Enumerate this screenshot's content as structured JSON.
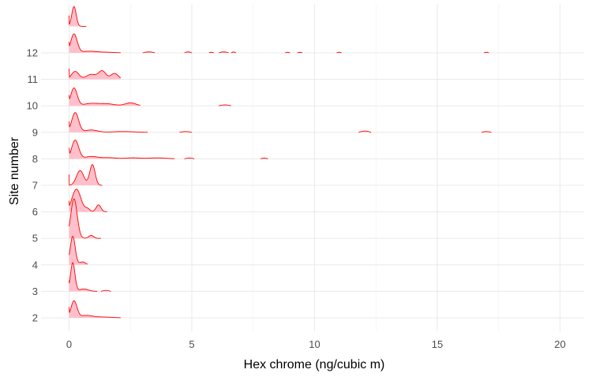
{
  "chart_data": {
    "type": "ridgeline",
    "xlabel": "Hex chrome (ng/cubic m)",
    "ylabel": "Site number",
    "xlim": [
      -1.3,
      20.9
    ],
    "x_ticks": [
      0,
      5,
      10,
      15,
      20
    ],
    "x_tick_labels": [
      "0",
      "5",
      "10",
      "15",
      "20"
    ],
    "categories": [
      "2",
      "3",
      "4",
      "5",
      "6",
      "7",
      "8",
      "9",
      "10",
      "11",
      "12"
    ],
    "grid": true,
    "fill_color": "#ffc0cb",
    "line_color": "#ff0000",
    "series": [
      {
        "name": "2",
        "peaks": [
          {
            "center": 0.2,
            "width": 0.12,
            "height": 0.85
          },
          {
            "center": 0.7,
            "width": 0.25,
            "height": 0.12
          },
          {
            "center": 1.4,
            "width": 0.35,
            "height": 0.04
          }
        ],
        "max_x": 2.1
      },
      {
        "name": "3",
        "peaks": [
          {
            "center": 0.15,
            "width": 0.09,
            "height": 1.45
          },
          {
            "center": 0.6,
            "width": 0.18,
            "height": 0.12
          }
        ],
        "max_x": 1.15,
        "extra_segments": [
          {
            "x0": 1.3,
            "x1": 1.7,
            "height": 0.05
          }
        ]
      },
      {
        "name": "4",
        "peaks": [
          {
            "center": 0.15,
            "width": 0.1,
            "height": 1.45
          },
          {
            "center": 0.55,
            "width": 0.12,
            "height": 0.15
          }
        ],
        "max_x": 0.75
      },
      {
        "name": "5",
        "peaks": [
          {
            "center": 0.2,
            "width": 0.13,
            "height": 2.0
          },
          {
            "center": 0.9,
            "width": 0.1,
            "height": 0.15
          }
        ],
        "max_x": 1.3
      },
      {
        "name": "6",
        "peaks": [
          {
            "center": 0.3,
            "width": 0.18,
            "height": 1.15
          },
          {
            "center": 0.75,
            "width": 0.1,
            "height": 0.15
          },
          {
            "center": 1.2,
            "width": 0.1,
            "height": 0.35
          }
        ],
        "max_x": 1.55
      },
      {
        "name": "7",
        "peaks": [
          {
            "center": 0.45,
            "width": 0.15,
            "height": 0.75
          },
          {
            "center": 0.95,
            "width": 0.11,
            "height": 1.05
          }
        ],
        "max_x": 1.35
      },
      {
        "name": "8",
        "peaks": [
          {
            "center": 0.25,
            "width": 0.14,
            "height": 0.95
          },
          {
            "center": 0.9,
            "width": 0.25,
            "height": 0.12
          },
          {
            "center": 1.6,
            "width": 0.3,
            "height": 0.06
          },
          {
            "center": 2.6,
            "width": 0.3,
            "height": 0.05
          },
          {
            "center": 3.6,
            "width": 0.35,
            "height": 0.05
          }
        ],
        "max_x": 4.3,
        "extra_segments": [
          {
            "x0": 4.7,
            "x1": 5.1,
            "height": 0.05
          },
          {
            "x0": 7.8,
            "x1": 8.1,
            "height": 0.04
          }
        ]
      },
      {
        "name": "9",
        "peaks": [
          {
            "center": 0.25,
            "width": 0.14,
            "height": 1.0
          },
          {
            "center": 0.9,
            "width": 0.25,
            "height": 0.12
          },
          {
            "center": 2.2,
            "width": 0.45,
            "height": 0.04
          }
        ],
        "max_x": 3.2,
        "extra_segments": [
          {
            "x0": 4.5,
            "x1": 5.0,
            "height": 0.04
          },
          {
            "x0": 11.8,
            "x1": 12.3,
            "height": 0.07
          },
          {
            "x0": 16.8,
            "x1": 17.2,
            "height": 0.04
          }
        ]
      },
      {
        "name": "10",
        "peaks": [
          {
            "center": 0.2,
            "width": 0.13,
            "height": 0.9
          },
          {
            "center": 0.9,
            "width": 0.3,
            "height": 0.12
          },
          {
            "center": 1.55,
            "width": 0.3,
            "height": 0.1
          },
          {
            "center": 2.5,
            "width": 0.22,
            "height": 0.15
          }
        ],
        "max_x": 2.9,
        "extra_segments": [
          {
            "x0": 6.1,
            "x1": 6.6,
            "height": 0.05
          }
        ]
      },
      {
        "name": "11",
        "peaks": [
          {
            "center": 0.25,
            "width": 0.15,
            "height": 0.4
          },
          {
            "center": 0.9,
            "width": 0.2,
            "height": 0.25
          },
          {
            "center": 1.35,
            "width": 0.15,
            "height": 0.42
          },
          {
            "center": 1.85,
            "width": 0.15,
            "height": 0.3
          }
        ],
        "max_x": 2.1
      },
      {
        "name": "12",
        "peaks": [
          {
            "center": 0.2,
            "width": 0.13,
            "height": 0.95
          },
          {
            "center": 0.8,
            "width": 0.3,
            "height": 0.08
          },
          {
            "center": 1.5,
            "width": 0.35,
            "height": 0.03
          }
        ],
        "max_x": 2.1,
        "extra_segments": [
          {
            "x0": 3.0,
            "x1": 3.5,
            "height": 0.05
          },
          {
            "x0": 4.7,
            "x1": 5.0,
            "height": 0.05
          },
          {
            "x0": 5.7,
            "x1": 5.9,
            "height": 0.03
          },
          {
            "x0": 6.1,
            "x1": 6.5,
            "height": 0.05
          },
          {
            "x0": 6.6,
            "x1": 6.8,
            "height": 0.04
          },
          {
            "x0": 8.8,
            "x1": 9.0,
            "height": 0.03
          },
          {
            "x0": 9.3,
            "x1": 9.5,
            "height": 0.03
          },
          {
            "x0": 10.9,
            "x1": 11.1,
            "height": 0.03
          },
          {
            "x0": 16.9,
            "x1": 17.1,
            "height": 0.03
          }
        ]
      },
      {
        "name": "",
        "peaks": [
          {
            "center": 0.2,
            "width": 0.09,
            "height": 1.0
          }
        ],
        "max_x": 0.7
      }
    ]
  }
}
